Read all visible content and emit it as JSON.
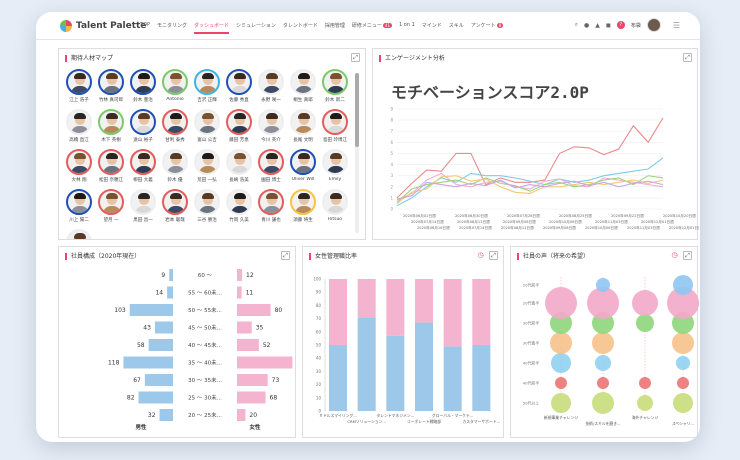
{
  "app": {
    "logo": "Talent Palette",
    "nav": [
      {
        "label": "TOP"
      },
      {
        "label": "モニタリング"
      },
      {
        "label": "ダッシュボード",
        "active": true
      },
      {
        "label": "シミュレーション"
      },
      {
        "label": "タレントボード"
      },
      {
        "label": "採用管理"
      },
      {
        "label": "研修メニュー",
        "badge": "41"
      },
      {
        "label": "1 on 1"
      },
      {
        "label": "マインド"
      },
      {
        "label": "スキル"
      },
      {
        "label": "アンケート",
        "badge": "8"
      }
    ],
    "user_name": "布袋"
  },
  "talent_map": {
    "title": "期待人材マップ",
    "people": [
      {
        "name": "江上 浩子",
        "ring": "#1f4fb5"
      },
      {
        "name": "竹林 真司郎",
        "ring": "#1f4fb5"
      },
      {
        "name": "鈴木 豊治",
        "ring": "#1f4fb5"
      },
      {
        "name": "Antonio",
        "ring": "#7bc96a"
      },
      {
        "name": "吉沢 正輝",
        "ring": "#3fb2e6"
      },
      {
        "name": "佐藤 秀直",
        "ring": "#1f4fb5"
      },
      {
        "name": "永野 咲一",
        "ring": "#ffffff"
      },
      {
        "name": "桐生 真耶",
        "ring": "#ffffff"
      },
      {
        "name": "鈴木 新二",
        "ring": "#7bc96a"
      },
      {
        "name": "高橋 直江",
        "ring": "#ffffff"
      },
      {
        "name": "木下 英樹",
        "ring": "#7bc96a"
      },
      {
        "name": "遠山 裕子",
        "ring": "#1f4fb5"
      },
      {
        "name": "甘利 泰秀",
        "ring": "#e25c5c"
      },
      {
        "name": "富山 公吉",
        "ring": "#ffffff"
      },
      {
        "name": "藤田 芳恵",
        "ring": "#e25c5c"
      },
      {
        "name": "今川 英介",
        "ring": "#ffffff"
      },
      {
        "name": "長尾 文明",
        "ring": "#ffffff"
      },
      {
        "name": "島田 玲博江",
        "ring": "#e25c5c"
      },
      {
        "name": "大林 翔",
        "ring": "#e25c5c"
      },
      {
        "name": "松田 奈穂江",
        "ring": "#e25c5c"
      },
      {
        "name": "柳田 大義",
        "ring": "#e25c5c"
      },
      {
        "name": "鈴木 優",
        "ring": "#ffffff"
      },
      {
        "name": "荒田 一弘",
        "ring": "#ffffff"
      },
      {
        "name": "長嶋 浩美",
        "ring": "#ffffff"
      },
      {
        "name": "園田 博士",
        "ring": "#e25c5c"
      },
      {
        "name": "Oliver Will",
        "ring": "#1f4fb5"
      },
      {
        "name": "Emily",
        "ring": "#ffffff"
      },
      {
        "name": "川上 陽二",
        "ring": "#1f4fb5"
      },
      {
        "name": "望月 一",
        "ring": "#e25c5c"
      },
      {
        "name": "黒田 昌一",
        "ring": "#ffffff"
      },
      {
        "name": "岩本 聡哉",
        "ring": "#e25c5c"
      },
      {
        "name": "三谷 勝治",
        "ring": "#ffffff"
      },
      {
        "name": "竹岡 久美",
        "ring": "#ffffff"
      },
      {
        "name": "青川 謙也",
        "ring": "#e25c5c"
      },
      {
        "name": "須藤 将生",
        "ring": "#f6c445"
      },
      {
        "name": "Ritsuo",
        "ring": "#ffffff"
      },
      {
        "name": "Michelle",
        "ring": "#ffffff"
      }
    ]
  },
  "engagement": {
    "title": "エンゲージメント分析",
    "score_label": "モチベーションスコア2.0P"
  },
  "engagement_chart": {
    "x_labels": [
      "2020年06月02日週",
      "2020年06月30日週",
      "2020年07月28日週",
      "2020年08月25日週",
      "2020年09月22日週",
      "2020年10月20日週",
      "2020年07月14日週",
      "2020年08月11日週",
      "2020年09月08日週",
      "2020年10月06日週",
      "2020年11月03日週",
      "2020年12月01日週",
      "2020年06月16日週",
      "2020年07月14日週",
      "2020年08月11日週",
      "2020年09月08日週",
      "2020年10月06日週",
      "2020年11月03日週",
      "2020年12月01日週"
    ],
    "y_ticks": [
      "0",
      "1",
      "2",
      "3",
      "4",
      "5",
      "6",
      "7",
      "8",
      "9"
    ]
  },
  "composition": {
    "title": "社員構成（2020年現在）",
    "footer_male": "男性",
    "footer_female": "女性"
  },
  "female_ratio": {
    "title": "女性管理職比率"
  },
  "voice": {
    "title": "社員の声（将来の希望）"
  },
  "chart_data": [
    {
      "type": "bar",
      "title": "社員構成（2020年現在）",
      "categories": [
        "60 〜",
        "55 〜 60未...",
        "50 〜 55未...",
        "45 〜 50未...",
        "40 〜 45未...",
        "35 〜 40未...",
        "30 〜 35未...",
        "25 〜 30未...",
        "20 〜 25未..."
      ],
      "series": [
        {
          "name": "男性",
          "values": [
            9,
            14,
            103,
            43,
            58,
            118,
            67,
            82,
            32
          ]
        },
        {
          "name": "女性",
          "values": [
            12,
            11,
            80,
            35,
            52,
            132,
            73,
            68,
            20
          ]
        }
      ]
    },
    {
      "type": "bar",
      "title": "女性管理職比率",
      "categories": [
        "ミドルスマイリング...",
        "CRMソリューション...",
        "タレントマネジメン...",
        "コーポレート戦略部",
        "グローバル・マーケテ...",
        "カスタマーサポート..."
      ],
      "ylim": [
        0,
        100
      ],
      "y_ticks": [
        0,
        10,
        20,
        30,
        40,
        50,
        60,
        70,
        80,
        90,
        100
      ],
      "series": [
        {
          "values": [
            50,
            71,
            57,
            67,
            49,
            50
          ]
        },
        {
          "values": [
            50,
            29,
            43,
            33,
            51,
            50
          ]
        }
      ]
    },
    {
      "type": "scatter",
      "title": "社員の声（将来の希望）",
      "categories": [
        "新規事業チャレンジ",
        "技術/スキルを磨き...",
        "海外チャレンジ",
        "スペシャリ..."
      ],
      "y_labels": [
        "50代以上",
        "40代前半",
        "40代前半",
        "30代後半",
        "30代前半",
        "20代後半",
        "20代前半"
      ]
    }
  ]
}
